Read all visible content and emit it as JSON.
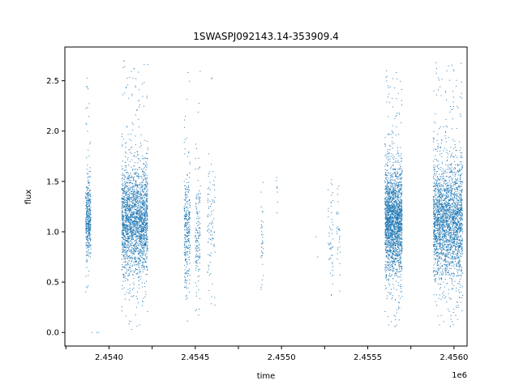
{
  "chart_data": {
    "type": "scatter",
    "title": "1SWASPJ092143.14-353909.4",
    "xlabel": "time",
    "ylabel": "flux",
    "x_offset_label": "1e6",
    "xlim": [
      2453744,
      2456076
    ],
    "ylim": [
      -0.135,
      2.835
    ],
    "x_ticks": [
      2453750,
      2454000,
      2454250,
      2454500,
      2454750,
      2455000,
      2455250,
      2455500,
      2455750,
      2456000
    ],
    "x_tick_labels": [
      "",
      "2.4540",
      "",
      "2.4545",
      "",
      "2.4550",
      "",
      "2.4555",
      "",
      "2.4560"
    ],
    "y_ticks": [
      0.0,
      0.5,
      1.0,
      1.5,
      2.0,
      2.5
    ],
    "y_tick_labels": [
      "0.0",
      "0.5",
      "1.0",
      "1.5",
      "2.0",
      "2.5"
    ],
    "grid": false,
    "marker_color": "#1f77b4",
    "clusters": [
      {
        "x_start": 2453865,
        "x_end": 2453895,
        "center": 1.1,
        "spread": 0.25,
        "count": 420,
        "ymin": 0.2,
        "ymax": 2.6
      },
      {
        "x_start": 2454074,
        "x_end": 2454225,
        "center": 1.1,
        "spread": 0.35,
        "count": 2200,
        "ymin": 0.03,
        "ymax": 2.7
      },
      {
        "x_start": 2454436,
        "x_end": 2454470,
        "center": 1.05,
        "spread": 0.4,
        "count": 300,
        "ymin": 0.05,
        "ymax": 2.6
      },
      {
        "x_start": 2454500,
        "x_end": 2454530,
        "center": 1.05,
        "spread": 0.4,
        "count": 150,
        "ymin": 0.1,
        "ymax": 2.6
      },
      {
        "x_start": 2454570,
        "x_end": 2454615,
        "center": 1.05,
        "spread": 0.35,
        "count": 90,
        "ymin": 0.1,
        "ymax": 2.55
      },
      {
        "x_start": 2454880,
        "x_end": 2454895,
        "center": 0.9,
        "spread": 0.35,
        "count": 35,
        "ymin": 0.35,
        "ymax": 1.7
      },
      {
        "x_start": 2454970,
        "x_end": 2454980,
        "center": 1.4,
        "spread": 0.2,
        "count": 8,
        "ymin": 1.1,
        "ymax": 1.7
      },
      {
        "x_start": 2455270,
        "x_end": 2455300,
        "center": 0.9,
        "spread": 0.3,
        "count": 50,
        "ymin": 0.3,
        "ymax": 1.55
      },
      {
        "x_start": 2455320,
        "x_end": 2455340,
        "center": 1.0,
        "spread": 0.3,
        "count": 30,
        "ymin": 0.4,
        "ymax": 1.55
      },
      {
        "x_start": 2455600,
        "x_end": 2455700,
        "center": 1.1,
        "spread": 0.35,
        "count": 2100,
        "ymin": 0.03,
        "ymax": 2.6
      },
      {
        "x_start": 2455880,
        "x_end": 2456050,
        "center": 1.1,
        "spread": 0.38,
        "count": 2400,
        "ymin": 0.03,
        "ymax": 2.68
      }
    ],
    "outliers": [
      {
        "x": 2453900,
        "y": 0.0
      },
      {
        "x": 2453930,
        "y": 0.0
      },
      {
        "x": 2453940,
        "y": 0.0
      },
      {
        "x": 2454130,
        "y": 0.03
      },
      {
        "x": 2455200,
        "y": 0.95
      },
      {
        "x": 2455210,
        "y": 0.75
      }
    ]
  }
}
